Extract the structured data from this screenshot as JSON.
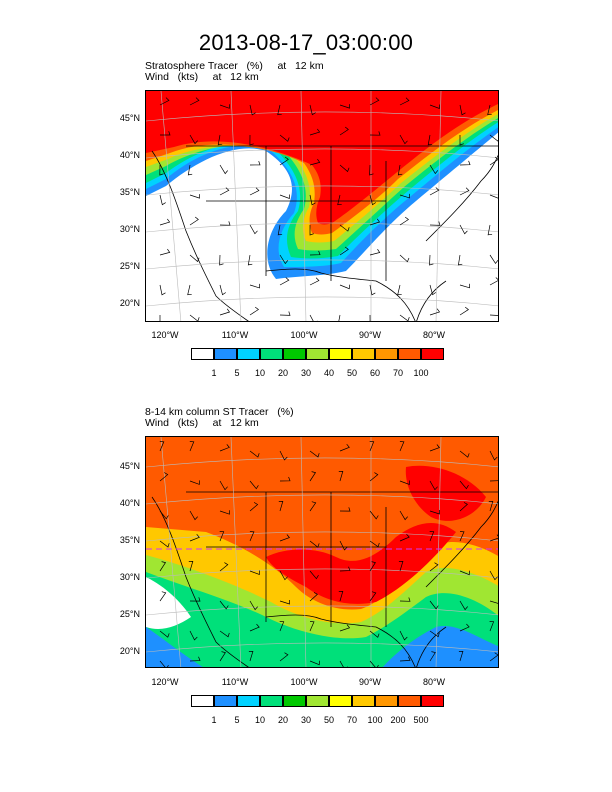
{
  "title": "2013-08-17_03:00:00",
  "panels": [
    {
      "label_line1": "Stratosphere Tracer   (%)     at   12 km",
      "label_line2": "Wind   (kts)     at   12 km",
      "lat_ticks": [
        "45°N",
        "40°N",
        "35°N",
        "30°N",
        "25°N",
        "20°N"
      ],
      "lon_ticks": [
        "120°W",
        "110°W",
        "100°W",
        "90°W",
        "80°W"
      ],
      "colorbar_labels": [
        "1",
        "5",
        "10",
        "20",
        "30",
        "40",
        "50",
        "60",
        "70",
        "100"
      ]
    },
    {
      "label_line1": "8-14 km column ST Tracer   (%)",
      "label_line2": "Wind   (kts)     at   12 km",
      "lat_ticks": [
        "45°N",
        "40°N",
        "35°N",
        "30°N",
        "25°N",
        "20°N"
      ],
      "lon_ticks": [
        "120°W",
        "110°W",
        "100°W",
        "90°W",
        "80°W"
      ],
      "colorbar_labels": [
        "1",
        "5",
        "10",
        "20",
        "30",
        "50",
        "70",
        "100",
        "200",
        "500"
      ]
    }
  ],
  "colorbar_colors": [
    "#ffffff",
    "#1e90ff",
    "#00d2ff",
    "#00e07a",
    "#00c800",
    "#a0e632",
    "#ffff00",
    "#ffc800",
    "#ff9600",
    "#ff5a00",
    "#ff0000"
  ]
}
